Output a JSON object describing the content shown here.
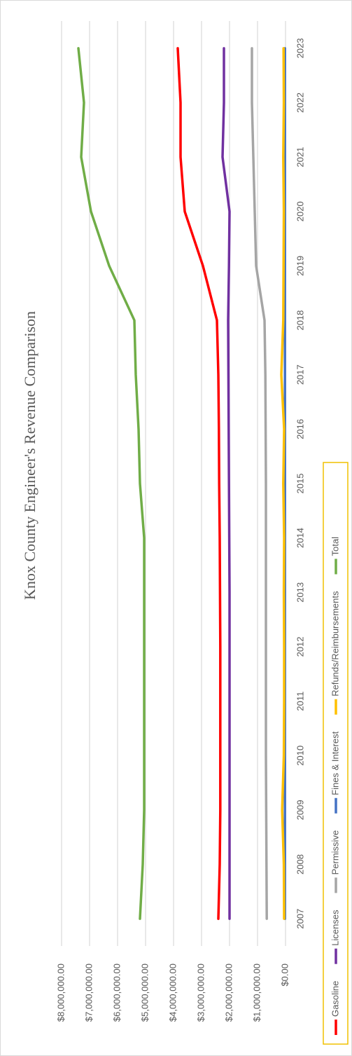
{
  "chart_data": {
    "type": "line",
    "title": "Knox County Engineer's Revenue Comparison",
    "categories": [
      "2007",
      "2008",
      "2009",
      "2010",
      "2011",
      "2012",
      "2013",
      "2014",
      "2015",
      "2016",
      "2017",
      "2018",
      "2019",
      "2020",
      "2021",
      "2022",
      "2023"
    ],
    "series": [
      {
        "name": "Gasoline",
        "color": "#ff0000",
        "values": [
          2400000,
          2350000,
          2330000,
          2330000,
          2330000,
          2330000,
          2340000,
          2350000,
          2370000,
          2380000,
          2400000,
          2450000,
          2950000,
          3600000,
          3750000,
          3750000,
          3850000
        ]
      },
      {
        "name": "Licenses",
        "color": "#7030a0",
        "values": [
          2000000,
          2000000,
          2000000,
          2000000,
          2000000,
          2000000,
          2000000,
          2010000,
          2020000,
          2030000,
          2040000,
          2050000,
          2020000,
          2000000,
          2250000,
          2200000,
          2200000
        ]
      },
      {
        "name": "Permissive",
        "color": "#a5a5a5",
        "values": [
          670000,
          680000,
          690000,
          700000,
          700000,
          700000,
          700000,
          700000,
          700000,
          710000,
          720000,
          750000,
          1050000,
          1100000,
          1150000,
          1200000,
          1200000
        ]
      },
      {
        "name": "Fines & Interest",
        "color": "#4472c4",
        "values": [
          20000,
          20000,
          20000,
          20000,
          20000,
          20000,
          20000,
          20000,
          20000,
          20000,
          20000,
          20000,
          20000,
          20000,
          20000,
          20000,
          20000
        ]
      },
      {
        "name": "Refunds/Reimbursements",
        "color": "#ffc000",
        "values": [
          50000,
          60000,
          120000,
          60000,
          50000,
          50000,
          60000,
          50000,
          80000,
          50000,
          150000,
          80000,
          70000,
          60000,
          80000,
          60000,
          70000
        ]
      },
      {
        "name": "Total",
        "color": "#70ad47",
        "values": [
          5200000,
          5100000,
          5050000,
          5050000,
          5050000,
          5050000,
          5050000,
          5050000,
          5200000,
          5250000,
          5350000,
          5400000,
          6300000,
          6950000,
          7300000,
          7200000,
          7400000
        ]
      }
    ],
    "ylim": [
      0,
      8000000
    ],
    "yticks": [
      {
        "value": 0,
        "label": "$0.00"
      },
      {
        "value": 1000000,
        "label": "$1,000,000.00"
      },
      {
        "value": 2000000,
        "label": "$2,000,000.00"
      },
      {
        "value": 3000000,
        "label": "$3,000,000.00"
      },
      {
        "value": 4000000,
        "label": "$4,000,000.00"
      },
      {
        "value": 5000000,
        "label": "$5,000,000.00"
      },
      {
        "value": 6000000,
        "label": "$6,000,000.00"
      },
      {
        "value": 7000000,
        "label": "$7,000,000.00"
      },
      {
        "value": 8000000,
        "label": "$8,000,000.00"
      }
    ],
    "grid": true,
    "legend": "bottom"
  }
}
